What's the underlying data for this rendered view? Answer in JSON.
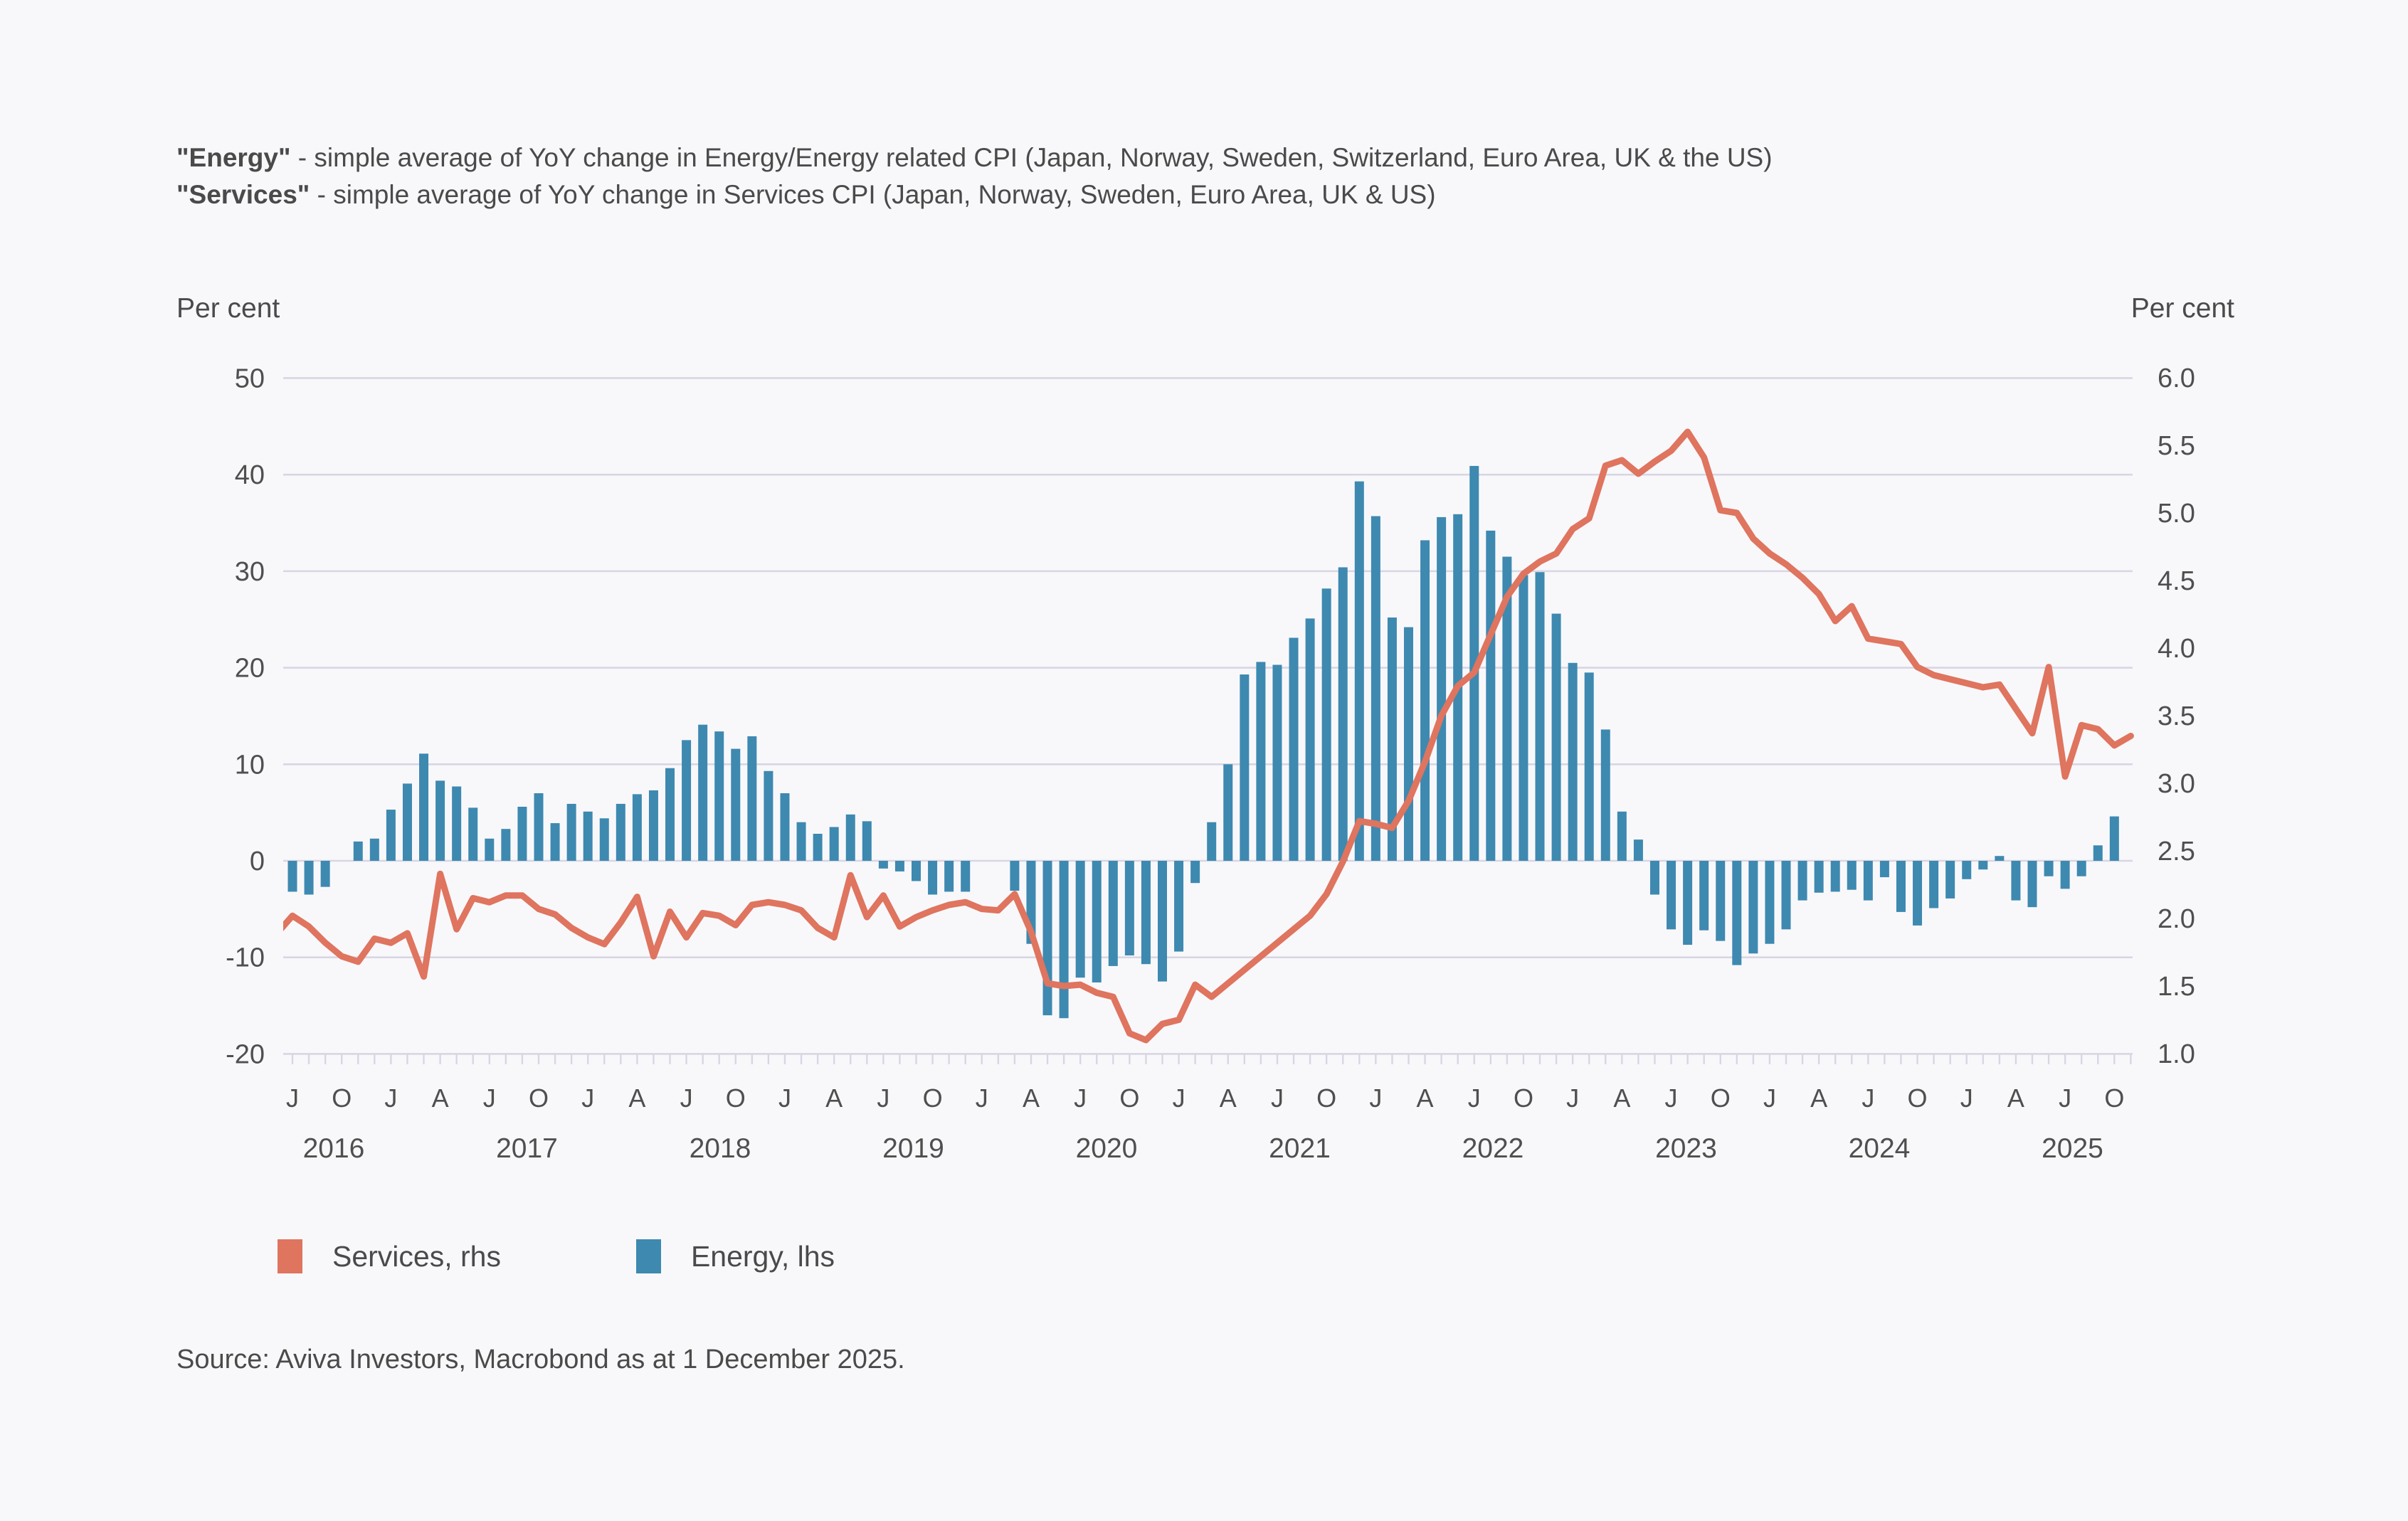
{
  "header": {
    "line1_bold": "\"Energy\"",
    "line1_rest": " - simple average of YoY change in Energy/Energy related CPI (Japan, Norway, Sweden, Switzerland, Euro Area, UK & the US)",
    "line2_bold": "\"Services\"",
    "line2_rest": " - simple average of YoY change in Services CPI (Japan, Norway, Sweden, Euro Area, UK & US)"
  },
  "left_axis_unit": "Per cent",
  "right_axis_unit": "Per cent",
  "legend": [
    {
      "label": "Services, rhs",
      "color": "#df745f"
    },
    {
      "label": "Energy, lhs",
      "color": "#3e89b0"
    }
  ],
  "source": "Source: Aviva Investors, Macrobond as at 1 December 2025.",
  "colors": {
    "background": "#f8f8fb",
    "bar": "#3e89b0",
    "line": "#df745f",
    "grid": "#d9d6e3",
    "text": "#4f4f4f"
  },
  "chart_data": {
    "type": "bar+line",
    "x_axis": {
      "unit": "month",
      "quarter_letter_map": {
        "0": "J",
        "3": "A",
        "6": "J",
        "9": "O"
      },
      "year_labels": [
        2016,
        2017,
        2018,
        2019,
        2020,
        2021,
        2022,
        2023,
        2024,
        2025
      ],
      "tick_start": "2016-07",
      "tick_end": "2025-11"
    },
    "left_axis": {
      "label": "Per cent",
      "ticks": [
        50,
        40,
        30,
        20,
        10,
        0,
        -10,
        -20
      ],
      "range": [
        -20,
        50
      ]
    },
    "right_axis": {
      "label": "Per cent",
      "ticks": [
        6.0,
        5.5,
        5.0,
        4.5,
        4.0,
        3.5,
        3.0,
        2.5,
        2.0,
        1.5,
        1.0
      ],
      "range": [
        1.0,
        6.0
      ]
    },
    "legend_position": "bottom",
    "grid": true,
    "series": [
      {
        "name": "Energy, lhs",
        "type": "bar",
        "axis": "left",
        "start": "2016-07",
        "values": [
          -3.2,
          -3.5,
          -2.7,
          0,
          2.0,
          2.3,
          5.3,
          8.0,
          11.1,
          8.3,
          7.7,
          5.5,
          2.3,
          3.3,
          5.6,
          7.0,
          3.9,
          5.9,
          5.1,
          4.4,
          5.9,
          6.9,
          7.3,
          9.6,
          12.5,
          14.1,
          13.4,
          11.6,
          12.9,
          9.3,
          7.0,
          4.0,
          2.8,
          3.5,
          4.8,
          4.1,
          -0.8,
          -1.1,
          -2.1,
          -3.5,
          -3.2,
          -3.2,
          0,
          0,
          -3.1,
          -8.6,
          -16.0,
          -16.3,
          -12.1,
          -12.6,
          -10.9,
          -9.8,
          -10.7,
          -12.5,
          -9.4,
          -2.3,
          4.0,
          10.0,
          19.3,
          20.6,
          20.3,
          23.1,
          25.1,
          28.2,
          30.4,
          39.3,
          35.7,
          25.2,
          24.2,
          33.2,
          35.6,
          35.9,
          40.9,
          34.2,
          31.5,
          29.6,
          29.9,
          25.6,
          20.5,
          19.5,
          13.6,
          5.1,
          2.2,
          -3.5,
          -7.1,
          -8.7,
          -7.2,
          -8.3,
          -10.8,
          -9.6,
          -8.6,
          -7.1,
          -4.1,
          -3.3,
          -3.2,
          -3.0,
          -4.1,
          -1.7,
          -5.3,
          -6.7,
          -4.9,
          -3.9,
          -1.9,
          -0.9,
          0.5,
          -4.1,
          -4.8,
          -1.6,
          -2.9,
          -1.6,
          1.6,
          4.6
        ]
      },
      {
        "name": "Services, rhs",
        "type": "line",
        "axis": "right",
        "start": "2016-06",
        "values": [
          1.88,
          2.02,
          1.94,
          1.82,
          1.72,
          1.68,
          1.85,
          1.82,
          1.89,
          1.57,
          2.33,
          1.92,
          2.15,
          2.12,
          2.17,
          2.17,
          2.07,
          2.03,
          1.93,
          1.86,
          1.81,
          1.97,
          2.16,
          1.72,
          2.05,
          1.86,
          2.04,
          2.02,
          1.95,
          2.1,
          2.12,
          2.1,
          2.06,
          1.93,
          1.86,
          2.32,
          2.01,
          2.17,
          1.94,
          2.01,
          2.06,
          2.1,
          2.12,
          2.07,
          2.06,
          2.18,
          1.9,
          1.52,
          1.5,
          1.51,
          1.45,
          1.42,
          1.15,
          1.1,
          1.22,
          1.25,
          1.51,
          1.42,
          1.52,
          1.62,
          1.72,
          1.82,
          1.92,
          2.02,
          2.18,
          2.42,
          2.72,
          2.7,
          2.67,
          2.87,
          3.16,
          3.5,
          3.72,
          3.82,
          4.1,
          4.38,
          4.55,
          4.64,
          4.7,
          4.88,
          4.96,
          5.35,
          5.39,
          5.29,
          5.38,
          5.46,
          5.6,
          5.41,
          5.02,
          5.0,
          4.81,
          4.7,
          4.62,
          4.52,
          4.4,
          4.2,
          4.31,
          4.07,
          4.05,
          4.03,
          3.86,
          3.8,
          3.77,
          3.74,
          3.71,
          3.73,
          3.55,
          3.37,
          3.86,
          3.05,
          3.43,
          3.4,
          3.28,
          3.35
        ]
      }
    ]
  }
}
